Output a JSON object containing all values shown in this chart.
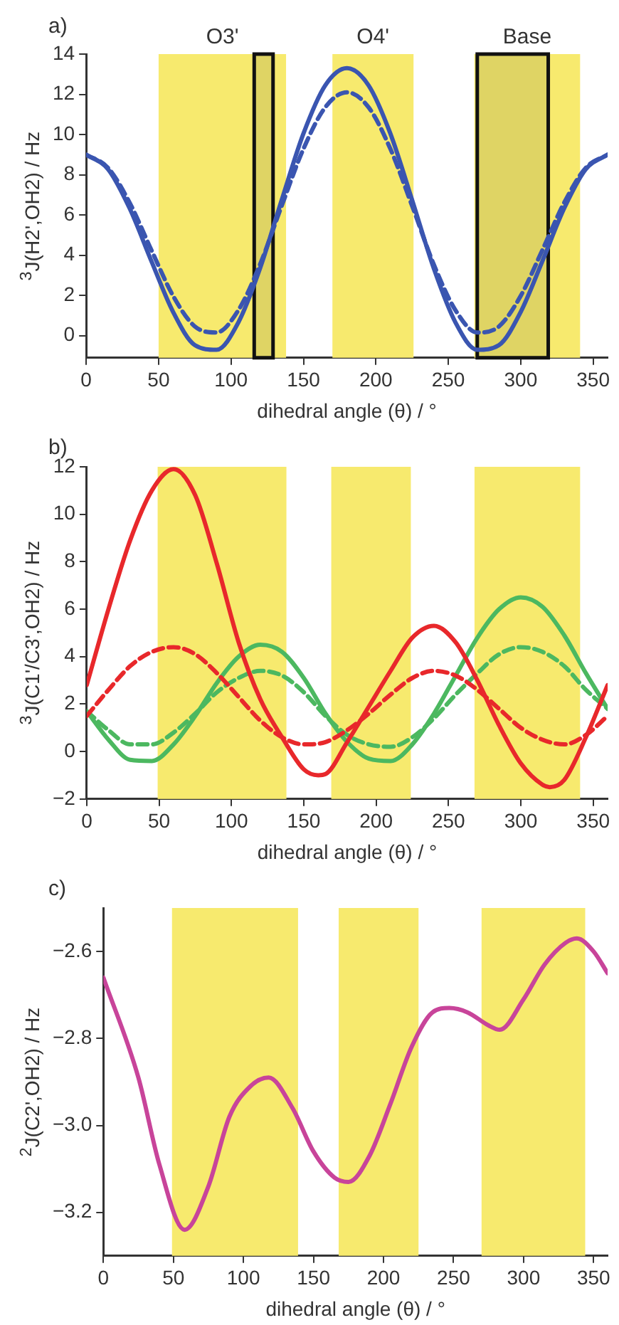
{
  "chart_data": [
    {
      "type": "line",
      "title": "a)",
      "xlabel": "dihedral angle (θ) / °",
      "ylabel": "$^{3}$J(H2',OH2) / Hz",
      "xlim": [
        0,
        360
      ],
      "ylim": [
        -1.1,
        14
      ],
      "xticks": [
        0,
        50,
        100,
        150,
        200,
        250,
        300,
        350
      ],
      "yticks": [
        0,
        2,
        4,
        6,
        8,
        10,
        12,
        14
      ],
      "grid": false,
      "legend": false,
      "marker": "none",
      "bands": [
        {
          "axis": "x",
          "from": 50,
          "to": 138,
          "label": "O3'",
          "color": "#f7ea6e"
        },
        {
          "axis": "x",
          "from": 170,
          "to": 226,
          "label": "O4'",
          "color": "#f7ea6e"
        },
        {
          "axis": "x",
          "from": 268,
          "to": 341,
          "label": "Base",
          "color": "#f7ea6e"
        },
        {
          "axis": "x",
          "from": 116,
          "to": 129,
          "color": "#111111"
        },
        {
          "axis": "x",
          "from": 270,
          "to": 319,
          "color": "#111111"
        }
      ],
      "series": [
        {
          "color": "#3a55b0",
          "line_style": "solid",
          "x": [
            0,
            15,
            30,
            45,
            60,
            75,
            90,
            105,
            120,
            135,
            150,
            165,
            180,
            195,
            210,
            225,
            240,
            255,
            270,
            285,
            300,
            315,
            330,
            345,
            360
          ],
          "values": [
            9.0,
            8.28,
            6.33,
            3.71,
            1.18,
            -0.47,
            -0.7,
            0.65,
            3.34,
            6.75,
            10.05,
            12.44,
            13.3,
            12.44,
            10.05,
            6.75,
            3.34,
            0.65,
            -0.7,
            -0.47,
            1.18,
            3.71,
            6.33,
            8.28,
            9.0
          ]
        },
        {
          "color": "#3a55b0",
          "line_style": "dashed",
          "x": [
            0,
            15,
            30,
            45,
            60,
            75,
            90,
            105,
            120,
            135,
            150,
            165,
            180,
            195,
            210,
            225,
            240,
            255,
            270,
            285,
            300,
            315,
            330,
            345,
            360
          ],
          "values": [
            9.0,
            8.35,
            6.61,
            4.26,
            1.98,
            0.46,
            0.16,
            1.26,
            3.54,
            6.46,
            9.29,
            11.35,
            12.1,
            11.35,
            9.29,
            6.46,
            3.54,
            1.26,
            0.16,
            0.46,
            1.98,
            4.26,
            6.61,
            8.35,
            9.0
          ]
        }
      ]
    },
    {
      "type": "line",
      "title": "b)",
      "xlabel": "dihedral angle (θ) / °",
      "ylabel": "$^{3}$J(C1'/C3',OH2) / Hz",
      "xlim": [
        0,
        360
      ],
      "ylim": [
        -2,
        12
      ],
      "xticks": [
        0,
        50,
        100,
        150,
        200,
        250,
        300,
        350
      ],
      "yticks": [
        {
          "value": -2,
          "label": "−2"
        },
        0,
        2,
        4,
        6,
        8,
        10,
        12
      ],
      "grid": false,
      "legend": false,
      "marker": "none",
      "bands": [
        {
          "axis": "x",
          "from": 49,
          "to": 138,
          "color": "#f7ea6e"
        },
        {
          "axis": "x",
          "from": 169,
          "to": 224,
          "color": "#f7ea6e"
        },
        {
          "axis": "x",
          "from": 268,
          "to": 341,
          "color": "#f7ea6e"
        }
      ],
      "series": [
        {
          "color": "#e8282b",
          "line_style": "solid",
          "x": [
            0,
            15,
            30,
            45,
            60,
            75,
            90,
            105,
            120,
            135,
            150,
            160,
            165,
            180,
            195,
            210,
            225,
            240,
            255,
            270,
            285,
            300,
            315,
            320,
            330,
            345,
            360
          ],
          "values": [
            2.8,
            6.0,
            8.9,
            11.0,
            11.9,
            10.8,
            7.9,
            4.6,
            2.2,
            0.6,
            -0.75,
            -1.0,
            -0.95,
            0.4,
            1.9,
            3.4,
            4.8,
            5.3,
            4.6,
            3.0,
            1.1,
            -0.5,
            -1.4,
            -1.5,
            -1.2,
            0.6,
            2.8
          ]
        },
        {
          "color": "#e8282b",
          "line_style": "dashed",
          "x": [
            0,
            15,
            30,
            45,
            60,
            75,
            90,
            105,
            120,
            135,
            150,
            165,
            180,
            195,
            210,
            225,
            240,
            255,
            270,
            285,
            300,
            315,
            330,
            345,
            360
          ],
          "values": [
            1.5,
            2.6,
            3.6,
            4.2,
            4.4,
            4.1,
            3.3,
            2.3,
            1.3,
            0.6,
            0.3,
            0.4,
            0.9,
            1.6,
            2.4,
            3.1,
            3.4,
            3.2,
            2.6,
            1.8,
            1.0,
            0.5,
            0.3,
            0.7,
            1.5
          ]
        },
        {
          "color": "#4cb860",
          "line_style": "solid",
          "x": [
            0,
            15,
            30,
            45,
            60,
            75,
            90,
            105,
            120,
            135,
            150,
            165,
            180,
            195,
            210,
            225,
            240,
            255,
            270,
            285,
            300,
            315,
            330,
            345,
            360
          ],
          "values": [
            1.7,
            0.5,
            -0.35,
            -0.4,
            0.3,
            1.5,
            2.9,
            4.0,
            4.5,
            4.2,
            3.1,
            1.6,
            0.4,
            -0.3,
            -0.4,
            0.3,
            1.6,
            3.2,
            4.8,
            6.0,
            6.5,
            6.1,
            4.9,
            3.3,
            1.8
          ]
        },
        {
          "color": "#4cb860",
          "line_style": "dashed",
          "x": [
            0,
            15,
            30,
            45,
            60,
            75,
            90,
            105,
            120,
            135,
            150,
            165,
            180,
            195,
            210,
            225,
            240,
            255,
            270,
            285,
            300,
            315,
            330,
            345,
            360
          ],
          "values": [
            1.7,
            0.9,
            0.3,
            0.3,
            0.8,
            1.6,
            2.5,
            3.1,
            3.4,
            3.2,
            2.5,
            1.5,
            0.7,
            0.3,
            0.2,
            0.6,
            1.4,
            2.4,
            3.3,
            4.1,
            4.4,
            4.2,
            3.6,
            2.6,
            1.8
          ]
        }
      ]
    },
    {
      "type": "line",
      "title": "c)",
      "xlabel": "dihedral angle (θ) / °",
      "ylabel": "$^{2}$J(C2',OH2) / Hz",
      "xlim": [
        0,
        360
      ],
      "ylim": [
        -3.3,
        -2.5
      ],
      "xticks": [
        0,
        50,
        100,
        150,
        200,
        250,
        300,
        350
      ],
      "yticks": [
        {
          "value": -3.2,
          "label": "−3.2"
        },
        {
          "value": -3.0,
          "label": "−3.0"
        },
        {
          "value": -2.8,
          "label": "−2.8"
        },
        {
          "value": -2.6,
          "label": "−2.6"
        }
      ],
      "grid": false,
      "legend": false,
      "marker": "none",
      "bands": [
        {
          "axis": "x",
          "from": 49,
          "to": 139,
          "color": "#f7ea6e"
        },
        {
          "axis": "x",
          "from": 168,
          "to": 225,
          "color": "#f7ea6e"
        },
        {
          "axis": "x",
          "from": 270,
          "to": 344,
          "color": "#f7ea6e"
        }
      ],
      "series": [
        {
          "color": "#c8449a",
          "line_style": "solid",
          "x": [
            0,
            25,
            40,
            58,
            75,
            90,
            105,
            118,
            135,
            150,
            165,
            175,
            190,
            205,
            220,
            235,
            247,
            260,
            275,
            283,
            300,
            315,
            330,
            338,
            350,
            360
          ],
          "values": [
            -2.66,
            -2.89,
            -3.09,
            -3.24,
            -3.14,
            -2.98,
            -2.91,
            -2.89,
            -2.96,
            -3.06,
            -3.12,
            -3.13,
            -3.07,
            -2.95,
            -2.82,
            -2.74,
            -2.73,
            -2.74,
            -2.77,
            -2.78,
            -2.71,
            -2.63,
            -2.58,
            -2.57,
            -2.6,
            -2.65
          ]
        }
      ]
    }
  ]
}
